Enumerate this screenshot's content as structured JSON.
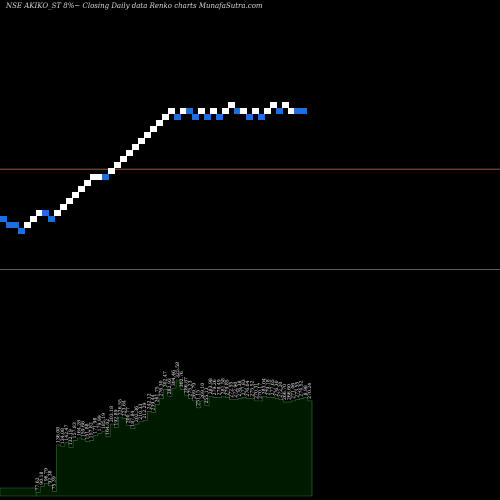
{
  "chart_data": {
    "type": "renko",
    "title": "NSE AKIKO_ST 8%~  Closing Daily data  Renko  charts MunafaSutra.com",
    "colors": {
      "background": "#000000",
      "up_brick": "#ffffff",
      "down_brick": "#1e6ee0",
      "line": "#c8642a",
      "volume_fill": "#001a00",
      "volume_stroke": "#2a7a2a"
    },
    "reference_levels": [
      {
        "brick_level": 8.8
      },
      {
        "brick_level": -7.9
      }
    ],
    "bricks": [
      {
        "col": 0,
        "level": 0,
        "dir": "down"
      },
      {
        "col": 1,
        "level": -1,
        "dir": "down"
      },
      {
        "col": 2,
        "level": -1,
        "dir": "down"
      },
      {
        "col": 3,
        "level": -2,
        "dir": "down"
      },
      {
        "col": 4,
        "level": -1,
        "dir": "up"
      },
      {
        "col": 5,
        "level": 0,
        "dir": "up"
      },
      {
        "col": 6,
        "level": 1,
        "dir": "up"
      },
      {
        "col": 7,
        "level": 1,
        "dir": "down"
      },
      {
        "col": 8,
        "level": 0,
        "dir": "down"
      },
      {
        "col": 9,
        "level": 1,
        "dir": "up"
      },
      {
        "col": 10,
        "level": 2,
        "dir": "up"
      },
      {
        "col": 11,
        "level": 3,
        "dir": "up"
      },
      {
        "col": 12,
        "level": 4,
        "dir": "up"
      },
      {
        "col": 13,
        "level": 5,
        "dir": "up"
      },
      {
        "col": 14,
        "level": 6,
        "dir": "up"
      },
      {
        "col": 15,
        "level": 7,
        "dir": "up"
      },
      {
        "col": 16,
        "level": 7,
        "dir": "up"
      },
      {
        "col": 17,
        "level": 7,
        "dir": "down"
      },
      {
        "col": 18,
        "level": 8,
        "dir": "up"
      },
      {
        "col": 19,
        "level": 9,
        "dir": "up"
      },
      {
        "col": 20,
        "level": 10,
        "dir": "up"
      },
      {
        "col": 21,
        "level": 11,
        "dir": "up"
      },
      {
        "col": 22,
        "level": 12,
        "dir": "up"
      },
      {
        "col": 23,
        "level": 13,
        "dir": "up"
      },
      {
        "col": 24,
        "level": 14,
        "dir": "up"
      },
      {
        "col": 25,
        "level": 15,
        "dir": "up"
      },
      {
        "col": 26,
        "level": 16,
        "dir": "up"
      },
      {
        "col": 27,
        "level": 17,
        "dir": "up"
      },
      {
        "col": 28,
        "level": 18,
        "dir": "up"
      },
      {
        "col": 29,
        "level": 17,
        "dir": "down"
      },
      {
        "col": 30,
        "level": 18,
        "dir": "up"
      },
      {
        "col": 31,
        "level": 18,
        "dir": "down"
      },
      {
        "col": 32,
        "level": 17,
        "dir": "down"
      },
      {
        "col": 33,
        "level": 18,
        "dir": "up"
      },
      {
        "col": 34,
        "level": 17,
        "dir": "down"
      },
      {
        "col": 35,
        "level": 18,
        "dir": "up"
      },
      {
        "col": 36,
        "level": 17,
        "dir": "down"
      },
      {
        "col": 37,
        "level": 18,
        "dir": "up"
      },
      {
        "col": 38,
        "level": 19,
        "dir": "up"
      },
      {
        "col": 39,
        "level": 18,
        "dir": "down"
      },
      {
        "col": 40,
        "level": 18,
        "dir": "up"
      },
      {
        "col": 41,
        "level": 17,
        "dir": "down"
      },
      {
        "col": 42,
        "level": 18,
        "dir": "up"
      },
      {
        "col": 43,
        "level": 17,
        "dir": "down"
      },
      {
        "col": 44,
        "level": 18,
        "dir": "up"
      },
      {
        "col": 45,
        "level": 19,
        "dir": "up"
      },
      {
        "col": 46,
        "level": 18,
        "dir": "down"
      },
      {
        "col": 47,
        "level": 19,
        "dir": "up"
      },
      {
        "col": 48,
        "level": 18,
        "dir": "up"
      },
      {
        "col": 49,
        "level": 18,
        "dir": "down"
      },
      {
        "col": 50,
        "level": 18,
        "dir": "down"
      }
    ],
    "volume_profile": {
      "labels": [
        "77.62",
        "90.18",
        "96.79",
        "92.38",
        "75.39",
        "136.08",
        "134.08",
        "142.47",
        "132.19",
        "157.83",
        "164.28",
        "159.66",
        "151.88",
        "157.82",
        "171.98",
        "179.99",
        "185.19",
        "164.02",
        "203.18",
        "192.89",
        "226.55",
        "223.64",
        "200.77",
        "187.84",
        "202.36",
        "210.33",
        "212.29",
        "242.12",
        "239.44",
        "261.75",
        "276.30",
        "302.47",
        "282.93",
        "304.46",
        "325.58",
        "302.76",
        "286.87",
        "275.23",
        "269.79",
        "251.15",
        "269.10",
        "255.13",
        "283.98",
        "279.26",
        "278.49",
        "281.58",
        "279.85",
        "272.55",
        "272.90",
        "276.38",
        "277.83",
        "276.04",
        "275.52",
        "270.31",
        "270.17",
        "283.04",
        "279.18",
        "277.65",
        "276.30",
        "272.20",
        "266.70",
        "266.60",
        "271.06",
        "273.55",
        "274.52",
        "8.98",
        "270.24"
      ],
      "values": [
        3,
        8,
        11,
        9,
        4,
        44,
        43,
        46,
        42,
        48,
        50,
        49,
        47,
        48,
        52,
        54,
        56,
        51,
        62,
        59,
        68,
        67,
        61,
        58,
        62,
        64,
        65,
        73,
        72,
        79,
        84,
        92,
        86,
        93,
        100,
        92,
        87,
        84,
        82,
        76,
        82,
        78,
        86,
        85,
        85,
        86,
        85,
        83,
        83,
        84,
        85,
        84,
        84,
        82,
        82,
        86,
        85,
        85,
        84,
        83,
        81,
        81,
        82,
        83,
        84,
        85,
        82
      ]
    }
  }
}
